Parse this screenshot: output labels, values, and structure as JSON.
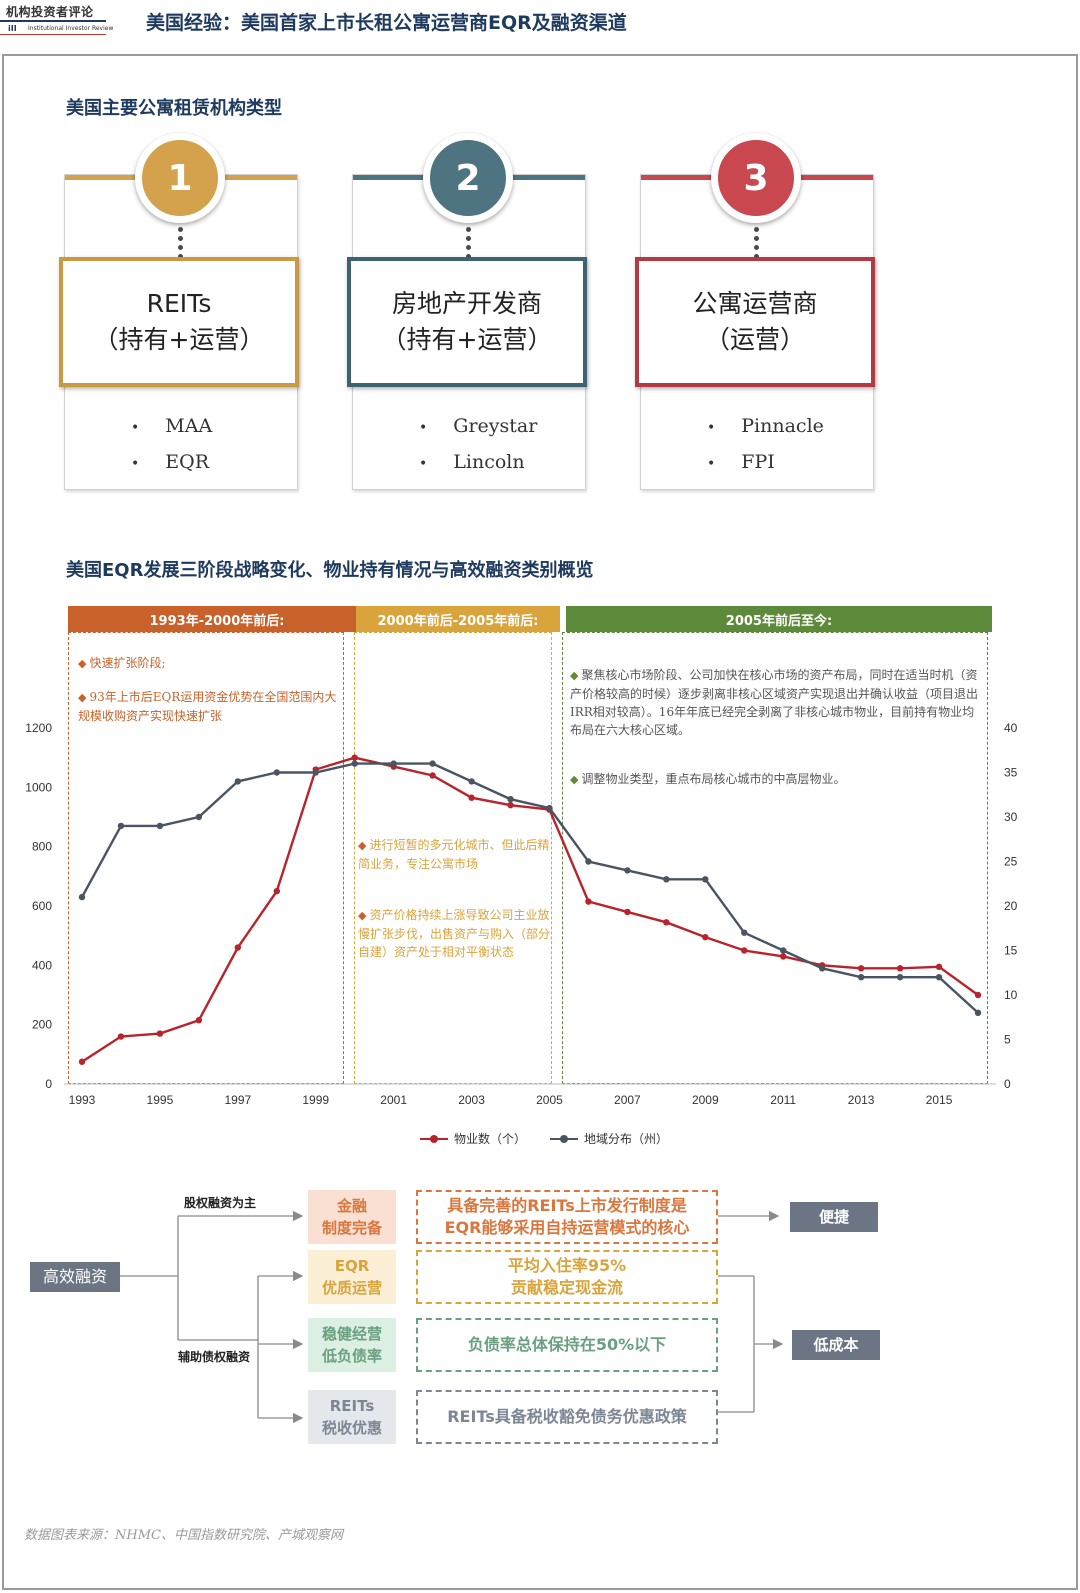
{
  "header": {
    "logo_cn": "机构投资者评论",
    "logo_mark": "iII",
    "logo_en": "Institutional Investor Review",
    "title": "美国经验：美国首家上市长租公寓运营商EQR及融资渠道"
  },
  "section1": {
    "title": "美国主要公寓租赁机构类型",
    "cards": [
      {
        "number": "1",
        "name": "REITs",
        "role": "（持有+运营）",
        "items": [
          "MAA",
          "EQR"
        ],
        "color": "#d4a24c",
        "border": "#c99a44"
      },
      {
        "number": "2",
        "name": "房地产开发商",
        "role": "（持有+运营）",
        "items": [
          "Greystar",
          "Lincoln"
        ],
        "color": "#4f7481",
        "border": "#3d6270"
      },
      {
        "number": "3",
        "name": "公寓运营商",
        "role": "（运营）",
        "items": [
          "Pinnacle",
          "FPI"
        ],
        "color": "#c94850",
        "border": "#b23a45"
      }
    ]
  },
  "section2": {
    "title": "美国EQR发展三阶段战略变化、物业持有情况与高效融资类别概览",
    "phases": [
      {
        "label": "1993年-2000年前后:",
        "color": "#c8622a",
        "notes": [
          "快速扩张阶段;",
          "93年上市后EQR运用资金优势在全国范围内大规模收购资产实现快速扩张"
        ]
      },
      {
        "label": "2000年前后-2005年前后:",
        "color": "#d9a43c",
        "notes": [
          "进行短暂的多元化城市、但此后精简业务，专注公寓市场",
          "资产价格持续上涨导致公司主业放慢扩张步伐，出售资产与购入（部分自建）资产处于相对平衡状态"
        ]
      },
      {
        "label": "2005年前后至今:",
        "color": "#5d8a3a",
        "notes": [
          "聚焦核心市场阶段、公司加快在核心市场的资产布局，同时在适当时机（资产价格较高的时候）逐步剥离非核心区域资产实现退出并确认收益（项目退出IRR相对较高）。16年年底已经完全剥离了非核心城市物业，目前持有物业均布局在六大核心区域。",
          "调整物业类型，重点布局核心城市的中高层物业。"
        ]
      }
    ]
  },
  "chart_data": {
    "type": "line",
    "x": [
      1993,
      1994,
      1995,
      1996,
      1997,
      1998,
      1999,
      2000,
      2001,
      2002,
      2003,
      2004,
      2005,
      2006,
      2007,
      2008,
      2009,
      2010,
      2011,
      2012,
      2013,
      2014,
      2015,
      2016
    ],
    "x_ticks": [
      "1993",
      "1995",
      "1997",
      "1999",
      "2001",
      "2003",
      "2005",
      "2007",
      "2009",
      "2011",
      "2013",
      "2015"
    ],
    "y_left_ticks": [
      "0",
      "200",
      "400",
      "600",
      "800",
      "1000",
      "1200"
    ],
    "y_right_ticks": [
      "0",
      "5",
      "10",
      "15",
      "20",
      "25",
      "30",
      "35",
      "40"
    ],
    "ylim_left": [
      0,
      1200
    ],
    "ylim_right": [
      0,
      40
    ],
    "series": [
      {
        "name": "物业数（个）",
        "axis": "left",
        "color": "#b8232c",
        "values": [
          75,
          160,
          170,
          215,
          460,
          650,
          1060,
          1100,
          1070,
          1040,
          965,
          940,
          925,
          615,
          580,
          545,
          495,
          450,
          430,
          400,
          390,
          390,
          395,
          300
        ]
      },
      {
        "name": "地域分布（州）",
        "axis": "right",
        "color": "#4a5563",
        "values": [
          21,
          29,
          29,
          30,
          34,
          35,
          35,
          36,
          36,
          36,
          34,
          32,
          31,
          25,
          24,
          23,
          23,
          17,
          15,
          13,
          12,
          12,
          12,
          8
        ]
      }
    ]
  },
  "section3": {
    "root": "高效融资",
    "branch_equity": "股权融资为主",
    "branch_debt": "辅助债权融资",
    "rows": [
      {
        "factor": "金融\n制度完备",
        "desc": "具备完善的REITs上市发行制度是\nEQR能够采用自持运营模式的核心",
        "color": "#d9773f",
        "bg": "#f9e0d2"
      },
      {
        "factor": "EQR\n优质运营",
        "desc": "平均入住率95%\n贡献稳定现金流",
        "color": "#d9a43c",
        "bg": "#fbf0d6"
      },
      {
        "factor": "稳健经营\n低负债率",
        "desc": "负债率总体保持在50%以下",
        "color": "#6aa080",
        "bg": "#dcefe3"
      },
      {
        "factor": "REITs\n税收优惠",
        "desc": "REITs具备税收豁免债务优惠政策",
        "color": "#7d8794",
        "bg": "#e4e7eb"
      }
    ],
    "result_convenient": "便捷",
    "result_lowcost": "低成本"
  },
  "source": "数据图表来源：NHMC、中国指数研究院、产城观察网"
}
